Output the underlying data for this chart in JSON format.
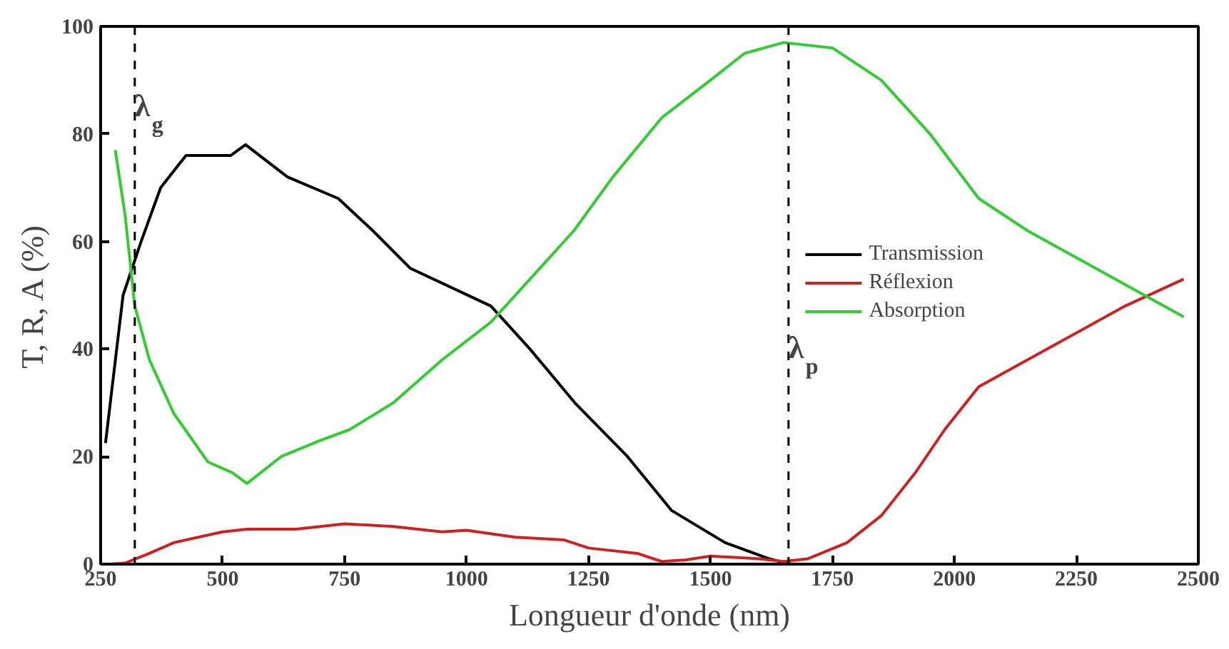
{
  "chart_data": {
    "type": "line",
    "xlabel": "Longueur d'onde (nm)",
    "ylabel": "T, R, A (%)",
    "xlim": [
      250,
      2500
    ],
    "xticks": [
      250,
      500,
      750,
      1000,
      1250,
      1500,
      1750,
      2000,
      2250,
      2500
    ],
    "ylim": [
      0,
      100
    ],
    "yticks": [
      0,
      20,
      40,
      60,
      80,
      100
    ],
    "grid": false,
    "legend": "top",
    "line_style": "solid",
    "marker": "none",
    "series": [
      {
        "name": "Transmission",
        "color": "#000000",
        "x": [
          260,
          296,
          333,
          373,
          425,
          517,
          547,
          633,
          737,
          808,
          885,
          1050,
          1130,
          1222,
          1330,
          1420,
          1530,
          1620,
          1665,
          1800,
          2000,
          2250,
          2480
        ],
        "values": [
          22.5,
          50,
          60,
          70,
          76,
          76,
          78,
          72,
          68,
          62,
          55,
          48,
          40,
          30,
          20,
          10,
          4,
          1,
          0,
          0,
          0,
          0,
          0
        ]
      },
      {
        "name": "Réflexion",
        "color": "#cc2222",
        "x": [
          270,
          300,
          350,
          400,
          500,
          550,
          650,
          750,
          850,
          950,
          1000,
          1100,
          1200,
          1250,
          1350,
          1400,
          1450,
          1500,
          1600,
          1650,
          1700,
          1780,
          1850,
          1920,
          1980,
          2050,
          2150,
          2250,
          2350,
          2470
        ],
        "values": [
          0,
          0.2,
          2,
          4,
          6,
          6.5,
          6.5,
          7.5,
          7,
          6,
          6.3,
          5,
          4.5,
          3,
          2,
          0.5,
          0.8,
          1.5,
          1,
          0.5,
          1,
          4,
          9,
          17,
          25,
          33,
          38,
          43,
          48,
          53
        ]
      },
      {
        "name": "Absorption",
        "color": "#33cc33",
        "x": [
          280,
          300,
          320,
          350,
          400,
          470,
          520,
          550,
          620,
          700,
          760,
          850,
          950,
          1050,
          1150,
          1220,
          1300,
          1400,
          1500,
          1570,
          1650,
          1750,
          1850,
          1950,
          2050,
          2150,
          2250,
          2350,
          2470
        ],
        "values": [
          77,
          65,
          48,
          38,
          28,
          19,
          17,
          15,
          20,
          23,
          25,
          30,
          38,
          45,
          55,
          62,
          72,
          83,
          90,
          95,
          97,
          96,
          90,
          80,
          68,
          62,
          57,
          52,
          46
        ]
      }
    ],
    "ref_lines": [
      {
        "axis": "x",
        "value": 320,
        "label": "λ$_{g}$",
        "line_style": "dashed",
        "color": "#000000"
      },
      {
        "axis": "x",
        "value": 1660,
        "label": "λ$_{p}$",
        "line_style": "dashed",
        "color": "#000000"
      }
    ]
  }
}
